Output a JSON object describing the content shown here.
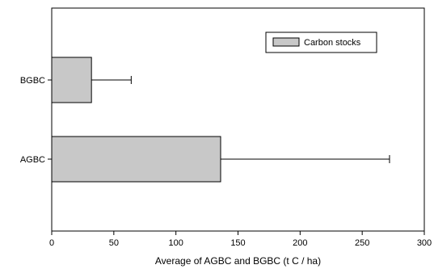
{
  "chart_data": {
    "type": "bar",
    "orientation": "horizontal",
    "categories": [
      "BGBC",
      "AGBC"
    ],
    "series": [
      {
        "name": "Carbon stocks",
        "values": [
          32,
          136
        ],
        "error_plus": [
          32,
          136
        ]
      }
    ],
    "xlabel": "Average of AGBC and BGBC (t C / ha)",
    "ylabel": "",
    "xlim": [
      0,
      300
    ],
    "xticks": [
      0,
      50,
      100,
      150,
      200,
      250,
      300
    ],
    "grid": false,
    "legend_position": "top-right",
    "colors": {
      "bar_fill": "#c8c8c8",
      "bar_stroke": "#000000"
    }
  }
}
